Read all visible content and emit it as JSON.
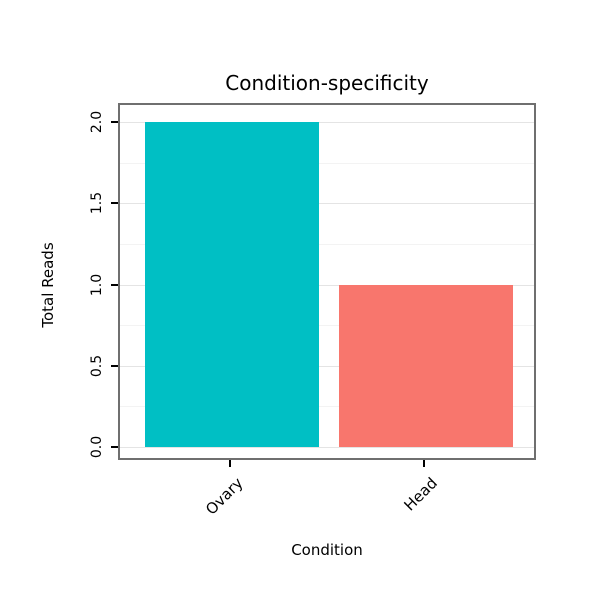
{
  "chart_data": {
    "type": "bar",
    "title": "Condition-specificity",
    "xlabel": "Condition",
    "ylabel": "Total Reads",
    "categories": [
      "Ovary",
      "Head"
    ],
    "values": [
      2,
      1
    ],
    "bar_colors": [
      "#00BFC4",
      "#F8766D"
    ],
    "y_ticks": [
      0.0,
      0.5,
      1.0,
      1.5,
      2.0
    ],
    "y_tick_labels": [
      "0.0",
      "0.5",
      "1.0",
      "1.5",
      "2.0"
    ],
    "ylim": [
      0,
      2
    ],
    "grid": "major at 0.5 steps, minor at 0.25 steps",
    "legend": "none",
    "panel_border_color": "#6f6f6f",
    "background_color": "#ffffff"
  }
}
